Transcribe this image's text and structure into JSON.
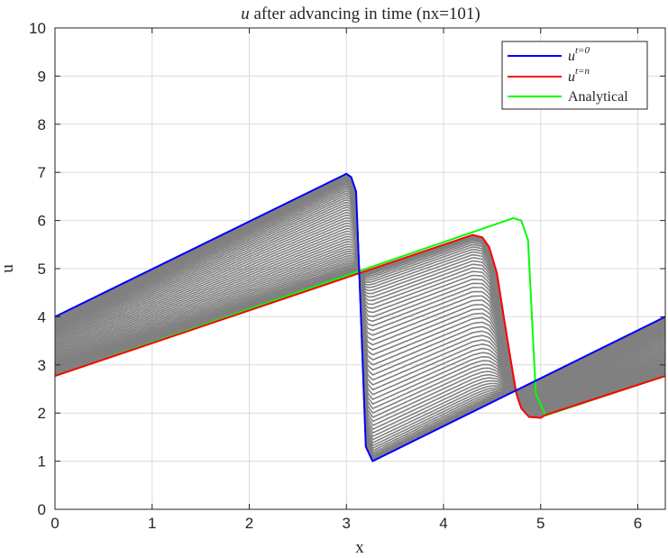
{
  "chart_data": {
    "type": "line",
    "title_var": "u",
    "title_rest": " after advancing in time (nx=101)",
    "xlabel": "x",
    "ylabel": "u",
    "xlim": [
      0,
      6.283
    ],
    "ylim": [
      0,
      10
    ],
    "xticks": [
      "0",
      "1",
      "2",
      "3",
      "4",
      "5",
      "6"
    ],
    "yticks": [
      "0",
      "1",
      "2",
      "3",
      "4",
      "5",
      "6",
      "7",
      "8",
      "9",
      "10"
    ],
    "grid": true,
    "legend_position": "top-right",
    "intermediate_color": "#808080",
    "series": [
      {
        "name_base": "u",
        "name_sup": "t=0",
        "color": "#0000ff",
        "x": [
          0,
          3.0,
          3.05,
          3.1,
          3.15,
          3.2,
          3.27,
          6.283
        ],
        "y": [
          4.0,
          6.97,
          6.9,
          6.6,
          4.0,
          1.3,
          1.0,
          4.0
        ]
      },
      {
        "name_base": "u",
        "name_sup": "t=n",
        "color": "#ff0000",
        "x": [
          0,
          4.3,
          4.4,
          4.47,
          4.55,
          4.62,
          4.7,
          4.75,
          4.8,
          4.88,
          5.0,
          5.05,
          6.283
        ],
        "y": [
          2.77,
          5.7,
          5.65,
          5.45,
          4.9,
          4.0,
          3.0,
          2.4,
          2.1,
          1.92,
          1.9,
          1.96,
          2.77
        ]
      },
      {
        "name_base": "",
        "name_sup": "",
        "name": "Analytical",
        "color": "#00ff00",
        "x": [
          0,
          4.72,
          4.8,
          4.87,
          4.95,
          5.05,
          6.283
        ],
        "y": [
          2.77,
          6.05,
          6.0,
          5.6,
          2.4,
          1.95,
          2.77
        ]
      }
    ]
  }
}
